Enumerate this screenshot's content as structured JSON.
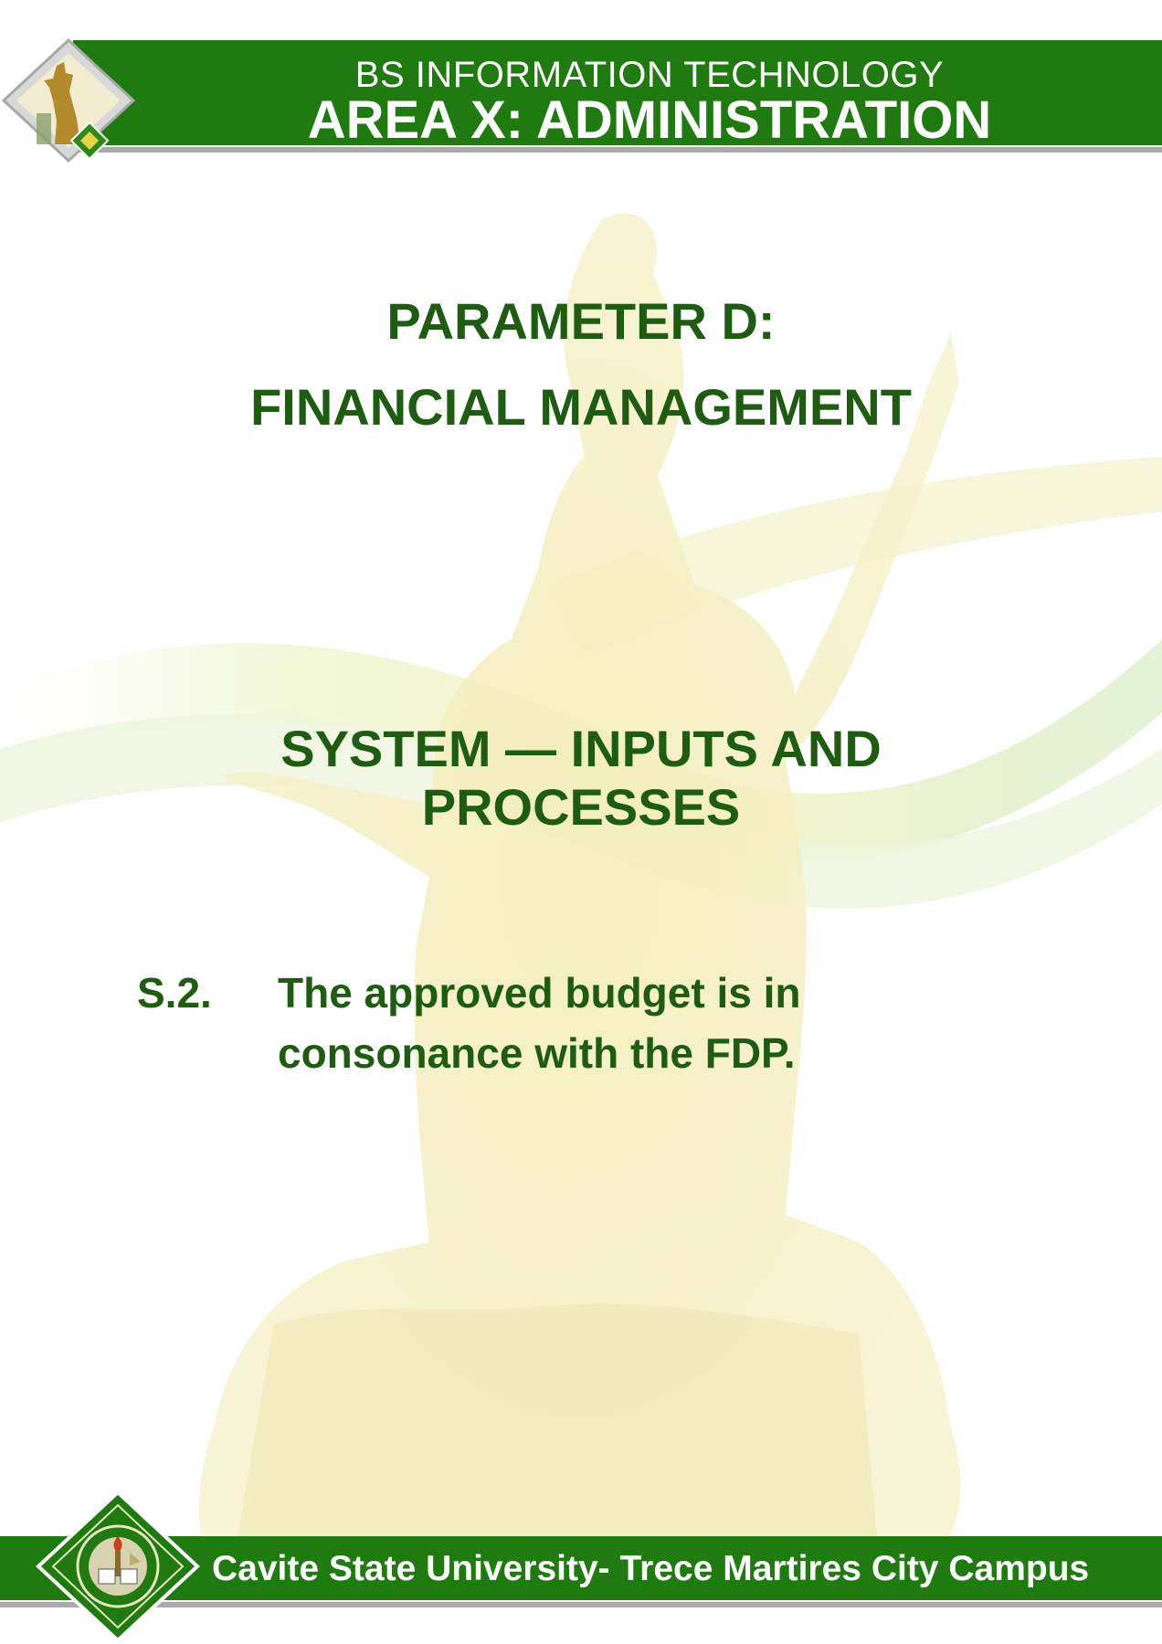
{
  "header": {
    "program": "BS INFORMATION TECHNOLOGY",
    "area": "AREA X: ADMINISTRATION"
  },
  "parameter": {
    "label": "PARAMETER D:",
    "name": "FINANCIAL MANAGEMENT"
  },
  "section": {
    "title_line1": "SYSTEM — INPUTS AND",
    "title_line2": "PROCESSES"
  },
  "item": {
    "number": "S.2.",
    "text_line1": "The approved budget is in",
    "text_line2": "consonance with the FDP."
  },
  "footer": {
    "campus": "Cavite State University- Trece Martires City Campus"
  },
  "colors": {
    "band_green": "#1f7a0f",
    "text_green": "#1e5c12",
    "underline_gray": "#a9a9a9"
  }
}
